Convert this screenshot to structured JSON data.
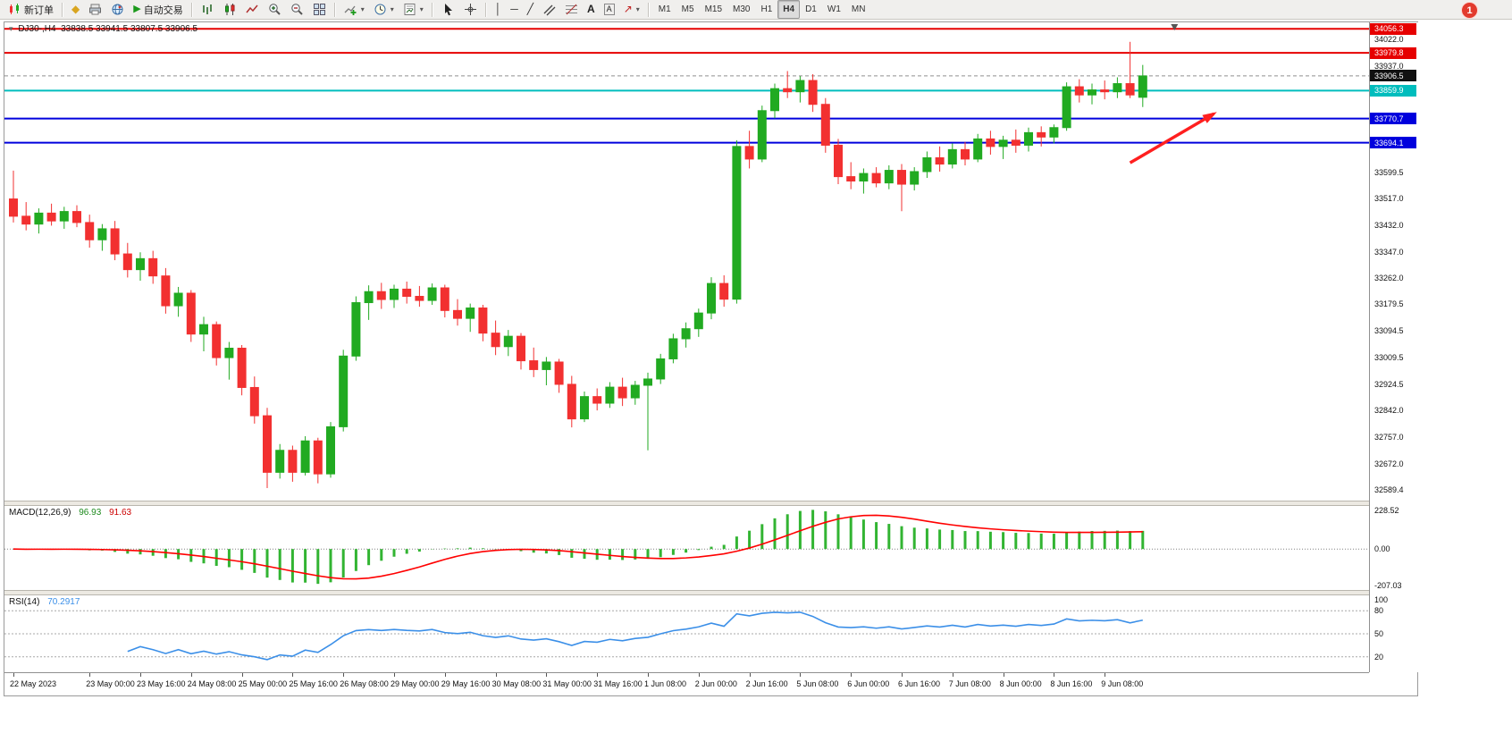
{
  "toolbar": {
    "new_order": "新订单",
    "autotrading": "自动交易",
    "timeframes": [
      "M1",
      "M5",
      "M15",
      "M30",
      "H1",
      "H4",
      "D1",
      "W1",
      "MN"
    ],
    "active_timeframe": "H4",
    "badge": "1"
  },
  "icons": {
    "dropdown": "▾",
    "collapse": "▾",
    "metaeditor": "◆",
    "autotrading_play": "▶",
    "vertical_line": "│",
    "horizontal_line": "─",
    "trendline": "╱",
    "text": "A",
    "arrows": "↗"
  },
  "chart": {
    "title": "DJ30-,H4",
    "ohlc_text": "33838.5 33941.5 33807.5 33906.5"
  },
  "colors": {
    "bull": "#21aa21",
    "bear": "#f23030",
    "wick_bull": "#21aa21",
    "wick_bear": "#f23030",
    "macd_hist": "#32b432",
    "macd_signal": "#ff0000",
    "rsi_line": "#3b8fe8",
    "axis_text": "#111111",
    "current_line": "#909090"
  },
  "chart_data": {
    "type": "candlestick",
    "symbol": "DJ30-",
    "timeframe": "H4",
    "current_bar": {
      "open": 33838.5,
      "high": 33941.5,
      "low": 33807.5,
      "close": 33906.5
    },
    "price_scale": {
      "min": 32555,
      "max": 34077
    },
    "shift_marker_bar": 91.5,
    "candles": [
      [
        33515,
        33605,
        33440,
        33460
      ],
      [
        33460,
        33505,
        33415,
        33435
      ],
      [
        33435,
        33485,
        33405,
        33470
      ],
      [
        33470,
        33500,
        33430,
        33445
      ],
      [
        33445,
        33490,
        33420,
        33475
      ],
      [
        33475,
        33495,
        33425,
        33440
      ],
      [
        33440,
        33465,
        33360,
        33385
      ],
      [
        33385,
        33435,
        33350,
        33420
      ],
      [
        33420,
        33445,
        33320,
        33340
      ],
      [
        33340,
        33375,
        33265,
        33290
      ],
      [
        33290,
        33345,
        33255,
        33325
      ],
      [
        33325,
        33350,
        33245,
        33270
      ],
      [
        33270,
        33295,
        33150,
        33175
      ],
      [
        33175,
        33235,
        33140,
        33215
      ],
      [
        33215,
        33225,
        33060,
        33085
      ],
      [
        33085,
        33140,
        33030,
        33115
      ],
      [
        33115,
        33125,
        32985,
        33010
      ],
      [
        33010,
        33060,
        32940,
        33040
      ],
      [
        33040,
        33050,
        32890,
        32915
      ],
      [
        32915,
        32950,
        32800,
        32825
      ],
      [
        32825,
        32850,
        32595,
        32645
      ],
      [
        32645,
        32735,
        32625,
        32715
      ],
      [
        32715,
        32730,
        32615,
        32645
      ],
      [
        32645,
        32760,
        32635,
        32745
      ],
      [
        32745,
        32755,
        32610,
        32640
      ],
      [
        32640,
        32805,
        32628,
        32790
      ],
      [
        32790,
        33035,
        32775,
        33015
      ],
      [
        33015,
        33205,
        33000,
        33185
      ],
      [
        33185,
        33240,
        33130,
        33220
      ],
      [
        33220,
        33248,
        33165,
        33195
      ],
      [
        33195,
        33242,
        33168,
        33228
      ],
      [
        33228,
        33252,
        33182,
        33205
      ],
      [
        33205,
        33238,
        33172,
        33192
      ],
      [
        33192,
        33246,
        33178,
        33232
      ],
      [
        33232,
        33242,
        33138,
        33160
      ],
      [
        33160,
        33196,
        33112,
        33135
      ],
      [
        33135,
        33182,
        33092,
        33168
      ],
      [
        33168,
        33178,
        33062,
        33088
      ],
      [
        33088,
        33128,
        33018,
        33045
      ],
      [
        33045,
        33098,
        33015,
        33078
      ],
      [
        33078,
        33088,
        32972,
        33000
      ],
      [
        33000,
        33042,
        32948,
        32972
      ],
      [
        32972,
        33012,
        32922,
        32996
      ],
      [
        32996,
        33006,
        32898,
        32925
      ],
      [
        32925,
        32952,
        32788,
        32815
      ],
      [
        32815,
        32902,
        32805,
        32886
      ],
      [
        32886,
        32912,
        32842,
        32865
      ],
      [
        32865,
        32932,
        32850,
        32916
      ],
      [
        32916,
        32946,
        32856,
        32882
      ],
      [
        32882,
        32936,
        32860,
        32922
      ],
      [
        32922,
        32962,
        32715,
        32942
      ],
      [
        32942,
        33022,
        32926,
        33006
      ],
      [
        33006,
        33086,
        32992,
        33070
      ],
      [
        33070,
        33122,
        33042,
        33102
      ],
      [
        33102,
        33166,
        33076,
        33152
      ],
      [
        33152,
        33266,
        33132,
        33246
      ],
      [
        33246,
        33272,
        33172,
        33196
      ],
      [
        33196,
        33702,
        33182,
        33682
      ],
      [
        33682,
        33732,
        33612,
        33642
      ],
      [
        33642,
        33812,
        33632,
        33796
      ],
      [
        33796,
        33882,
        33772,
        33866
      ],
      [
        33866,
        33922,
        33836,
        33856
      ],
      [
        33856,
        33906,
        33822,
        33892
      ],
      [
        33892,
        33912,
        33792,
        33816
      ],
      [
        33816,
        33836,
        33662,
        33686
      ],
      [
        33686,
        33706,
        33562,
        33586
      ],
      [
        33586,
        33632,
        33546,
        33572
      ],
      [
        33572,
        33612,
        33532,
        33596
      ],
      [
        33596,
        33616,
        33552,
        33566
      ],
      [
        33566,
        33622,
        33546,
        33606
      ],
      [
        33606,
        33626,
        33476,
        33562
      ],
      [
        33562,
        33616,
        33542,
        33602
      ],
      [
        33602,
        33666,
        33582,
        33646
      ],
      [
        33646,
        33682,
        33602,
        33626
      ],
      [
        33626,
        33692,
        33612,
        33672
      ],
      [
        33672,
        33696,
        33622,
        33642
      ],
      [
        33642,
        33722,
        33632,
        33706
      ],
      [
        33706,
        33732,
        33656,
        33682
      ],
      [
        33682,
        33716,
        33642,
        33702
      ],
      [
        33702,
        33736,
        33662,
        33686
      ],
      [
        33686,
        33742,
        33666,
        33726
      ],
      [
        33726,
        33746,
        33682,
        33712
      ],
      [
        33712,
        33752,
        33692,
        33742
      ],
      [
        33742,
        33886,
        33732,
        33872
      ],
      [
        33872,
        33896,
        33822,
        33846
      ],
      [
        33846,
        33882,
        33816,
        33862
      ],
      [
        33862,
        33892,
        33832,
        33856
      ],
      [
        33856,
        33902,
        33836,
        33882
      ],
      [
        33882,
        34015,
        33836,
        33846
      ],
      [
        33838.5,
        33941.5,
        33807.5,
        33906.5
      ]
    ],
    "time_labels": [
      {
        "bar": 0,
        "label": "22 May 2023"
      },
      {
        "bar": 6,
        "label": "23 May 00:00"
      },
      {
        "bar": 10,
        "label": "23 May 16:00"
      },
      {
        "bar": 14,
        "label": "24 May 08:00"
      },
      {
        "bar": 18,
        "label": "25 May 00:00"
      },
      {
        "bar": 22,
        "label": "25 May 16:00"
      },
      {
        "bar": 26,
        "label": "26 May 08:00"
      },
      {
        "bar": 30,
        "label": "29 May 00:00"
      },
      {
        "bar": 34,
        "label": "29 May 16:00"
      },
      {
        "bar": 38,
        "label": "30 May 08:00"
      },
      {
        "bar": 42,
        "label": "31 May 00:00"
      },
      {
        "bar": 46,
        "label": "31 May 16:00"
      },
      {
        "bar": 50,
        "label": "1 Jun 08:00"
      },
      {
        "bar": 54,
        "label": "2 Jun 00:00"
      },
      {
        "bar": 58,
        "label": "2 Jun 16:00"
      },
      {
        "bar": 62,
        "label": "5 Jun 08:00"
      },
      {
        "bar": 66,
        "label": "6 Jun 00:00"
      },
      {
        "bar": 70,
        "label": "6 Jun 16:00"
      },
      {
        "bar": 74,
        "label": "7 Jun 08:00"
      },
      {
        "bar": 78,
        "label": "8 Jun 00:00"
      },
      {
        "bar": 82,
        "label": "8 Jun 16:00"
      },
      {
        "bar": 86,
        "label": "9 Jun 08:00"
      }
    ],
    "price_ticks": [
      "34022.0",
      "33937.0",
      "33599.5",
      "33517.0",
      "33432.0",
      "33347.0",
      "33262.0",
      "33179.5",
      "33094.5",
      "33009.5",
      "32924.5",
      "32842.0",
      "32757.0",
      "32672.0",
      "32589.4"
    ],
    "levels": [
      {
        "price": 34056.3,
        "label": "34056.3",
        "bg": "#e60000",
        "line_color": "#e60000",
        "line_width": 2,
        "dash": ""
      },
      {
        "price": 33979.8,
        "label": "33979.8",
        "bg": "#e60000",
        "line_color": "#e60000",
        "line_width": 2,
        "dash": ""
      },
      {
        "price": 33906.5,
        "label": "33906.5",
        "bg": "#111111",
        "line_color": "#909090",
        "line_width": 1,
        "dash": "4 3"
      },
      {
        "price": 33859.9,
        "label": "33859.9",
        "bg": "#00bdbd",
        "line_color": "#00bdbd",
        "line_width": 2,
        "dash": ""
      },
      {
        "price": 33770.7,
        "label": "33770.7",
        "bg": "#0000dd",
        "line_color": "#0000dd",
        "line_width": 2,
        "dash": ""
      },
      {
        "price": 33694.1,
        "label": "33694.1",
        "bg": "#0000dd",
        "line_color": "#0000dd",
        "line_width": 2,
        "dash": ""
      }
    ],
    "arrow": {
      "from_bar": 88,
      "from_price": 33630,
      "to_bar": 94.6,
      "to_price": 33786,
      "color": "#ff1f1f"
    },
    "indicators": {
      "macd": {
        "label": "MACD(12,26,9)",
        "main_value": "96.93",
        "signal_value": "91.63",
        "params": [
          12,
          26,
          9
        ],
        "axis_labels": [
          "228.52",
          "0.00",
          "-207.03"
        ],
        "range": {
          "min": -230,
          "max": 242
        }
      },
      "rsi": {
        "label": "RSI(14)",
        "value": "70.2917",
        "period": 14,
        "levels": [
          80,
          50,
          20
        ],
        "axis_labels": [
          "100",
          "80",
          "50",
          "20"
        ],
        "range": {
          "min": 0,
          "max": 100
        }
      }
    }
  }
}
